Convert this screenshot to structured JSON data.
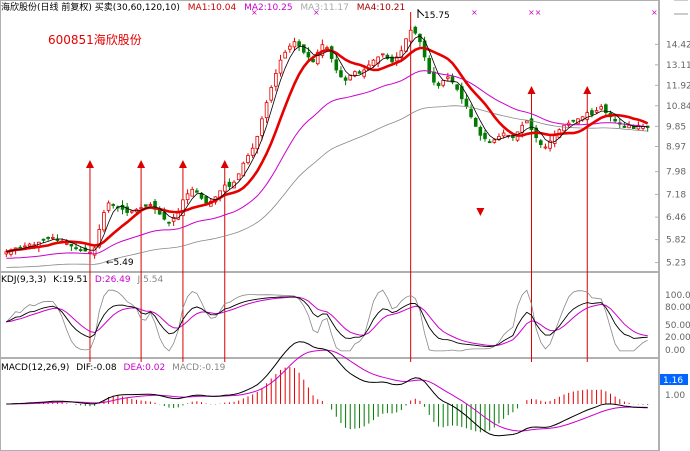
{
  "header": {
    "main": "海欣股份(日线 前复权) 买卖(30,60,120,10)",
    "ma1": "MA1:10.04",
    "ma2": "MA2:10.25",
    "ma3": "MA3:11.17",
    "ma4": "MA4:10.21"
  },
  "stock_label": "600851海欣股份",
  "colors": {
    "up": "#e60000",
    "down": "#007a00",
    "ma1": "#000000",
    "ma2": "#e60000",
    "ma3": "#cc00cc",
    "ma4": "#888888",
    "arrow": "#dd0000",
    "dea": "#cc00cc",
    "diff": "#000000",
    "panel_line": "#b0b0b0",
    "axis_text": "#666666"
  },
  "chart_data": [
    {
      "type": "candlestick",
      "title": "海欣股份(日线 前复权)",
      "y_axis_labels": [
        "14.42",
        "13.11",
        "11.92",
        "10.84",
        "9.85",
        "8.97",
        "7.98",
        "7.18",
        "6.46",
        "5.82",
        "5.23"
      ],
      "ylim": [
        5.1,
        16.3
      ],
      "scale": "log",
      "annotations": [
        {
          "text": "5.49",
          "x": 20,
          "y": 5.49
        },
        {
          "text": "15.75",
          "x": 89,
          "y": 15.75
        }
      ],
      "buy_signals_x": [
        18,
        29,
        38,
        47,
        113,
        125
      ],
      "sell_signals_x": [
        102
      ],
      "legend": [
        {
          "name": "MA1",
          "value": 10.04
        },
        {
          "name": "MA2",
          "value": 10.25
        },
        {
          "name": "MA3",
          "value": 11.17
        },
        {
          "name": "MA4",
          "value": 10.21
        }
      ],
      "close": [
        5.5,
        5.55,
        5.6,
        5.58,
        5.65,
        5.7,
        5.68,
        5.75,
        5.8,
        5.85,
        5.88,
        5.82,
        5.78,
        5.72,
        5.65,
        5.6,
        5.55,
        5.52,
        5.49,
        5.6,
        6.1,
        6.6,
        6.9,
        6.85,
        6.75,
        6.7,
        6.6,
        6.65,
        6.7,
        6.75,
        6.8,
        6.85,
        6.7,
        6.55,
        6.4,
        6.3,
        6.45,
        6.6,
        7.0,
        7.2,
        7.35,
        7.25,
        7.05,
        6.9,
        6.95,
        7.1,
        7.3,
        7.5,
        7.45,
        7.6,
        7.9,
        8.3,
        8.6,
        8.9,
        9.4,
        10.2,
        11.0,
        11.8,
        12.6,
        13.4,
        13.9,
        14.3,
        14.6,
        14.3,
        13.9,
        13.6,
        13.3,
        13.9,
        14.4,
        14.2,
        13.5,
        12.8,
        12.4,
        12.2,
        12.5,
        12.7,
        12.6,
        12.8,
        13.1,
        13.4,
        13.6,
        13.8,
        13.5,
        13.3,
        13.6,
        14.0,
        14.8,
        15.4,
        15.2,
        14.6,
        13.6,
        12.6,
        12.1,
        11.9,
        12.2,
        12.4,
        12.1,
        11.7,
        11.2,
        10.8,
        10.3,
        9.85,
        9.45,
        9.3,
        9.15,
        9.25,
        9.4,
        9.55,
        9.45,
        9.35,
        9.6,
        9.9,
        10.1,
        9.7,
        9.35,
        9.05,
        8.95,
        9.2,
        9.5,
        9.7,
        9.9,
        10.0,
        10.1,
        10.2,
        10.3,
        10.5,
        10.4,
        10.6,
        10.8,
        10.5,
        10.3,
        10.1,
        9.95,
        9.8,
        9.9,
        9.75,
        9.9,
        9.85,
        9.8
      ],
      "ma_series": [
        {
          "name": "MA1",
          "color": "#000000"
        },
        {
          "name": "MA2",
          "color": "#e60000"
        },
        {
          "name": "MA3",
          "color": "#cc00cc"
        },
        {
          "name": "MA4",
          "color": "#888888"
        }
      ]
    },
    {
      "type": "line",
      "title": "KDJ(9,3,3)",
      "legend": [
        {
          "name": "K",
          "value": 19.51
        },
        {
          "name": "D",
          "value": 26.49
        },
        {
          "name": "J",
          "value": 5.54
        }
      ],
      "y_axis_labels": [
        "100.00",
        "80.00",
        "50.00",
        "20.00",
        "0.00"
      ],
      "ylim": [
        -5,
        112
      ]
    },
    {
      "type": "bar",
      "title": "MACD(12,26,9)",
      "legend": [
        {
          "name": "DIF",
          "value": -0.08
        },
        {
          "name": "DEA",
          "value": 0.02
        },
        {
          "name": "MACD",
          "value": -0.19
        }
      ],
      "y_axis_labels": [
        "1.16",
        "1.00"
      ],
      "current_value": "1.16"
    }
  ]
}
